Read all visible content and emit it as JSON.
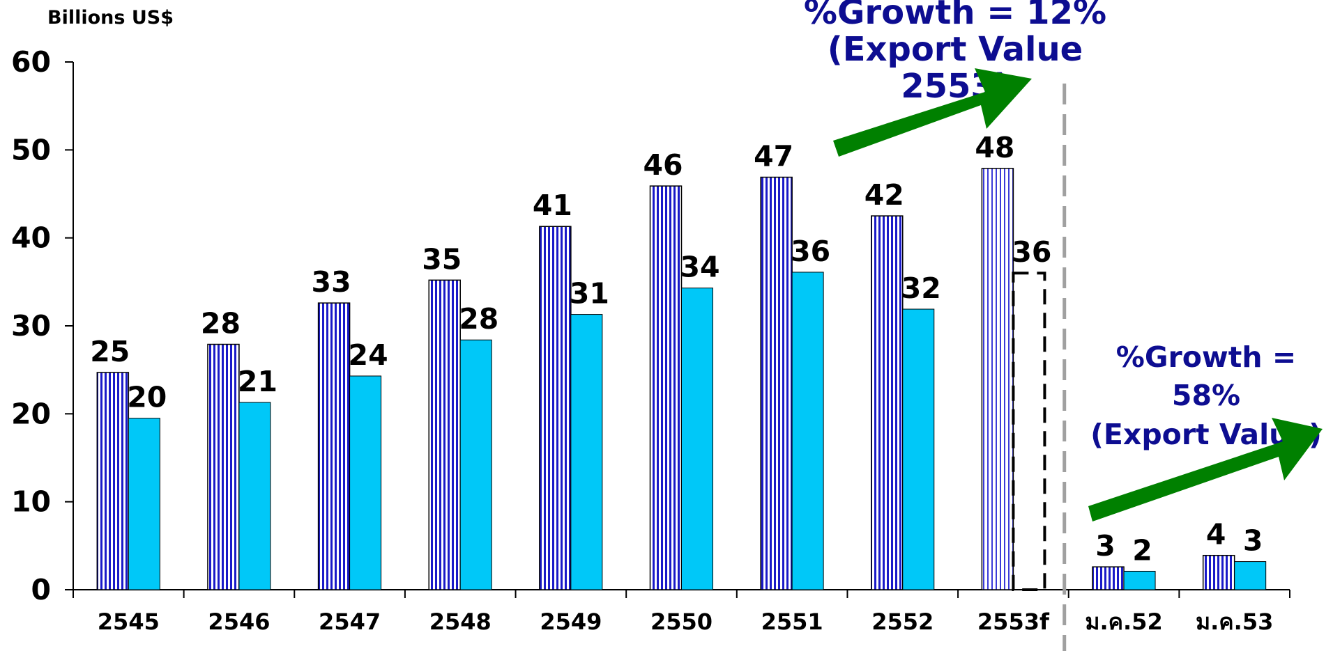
{
  "chart_data": {
    "type": "bar",
    "ylabel": "Billions US$",
    "ylim": [
      0,
      60
    ],
    "yticks": [
      0,
      10,
      20,
      30,
      40,
      50,
      60
    ],
    "categories": [
      "2545",
      "2546",
      "2547",
      "2548",
      "2549",
      "2550",
      "2551",
      "2552",
      "2553f",
      "ม.ค.52",
      "ม.ค.53"
    ],
    "series": [
      {
        "values": [
          24.7,
          27.9,
          32.6,
          35.2,
          41.3,
          45.9,
          46.9,
          42.5,
          47.9,
          2.6,
          3.9
        ],
        "labels": [
          "25",
          "28",
          "33",
          "35",
          "41",
          "46",
          "47",
          "42",
          "48",
          "3",
          "4"
        ],
        "color": "#1a1ac8",
        "pattern": "vertical-stripes"
      },
      {
        "values": [
          19.5,
          21.3,
          24.3,
          28.4,
          31.3,
          34.3,
          36.1,
          31.9,
          36.0,
          2.1,
          3.2
        ],
        "labels": [
          "20",
          "21",
          "24",
          "28",
          "31",
          "34",
          "36",
          "32",
          "36",
          "2",
          "3"
        ],
        "color": "#00c8f8",
        "forecast_outline_index": 8
      }
    ],
    "divider_after_category": "2553f",
    "annotations": [
      {
        "line1": "%Growth = 12%",
        "line2": "(Export Value 2553)"
      },
      {
        "line1": "%Growth = 58%",
        "line2": "(Export Value)"
      }
    ],
    "arrow_color": "#008000",
    "grid": false,
    "legend": "none"
  }
}
